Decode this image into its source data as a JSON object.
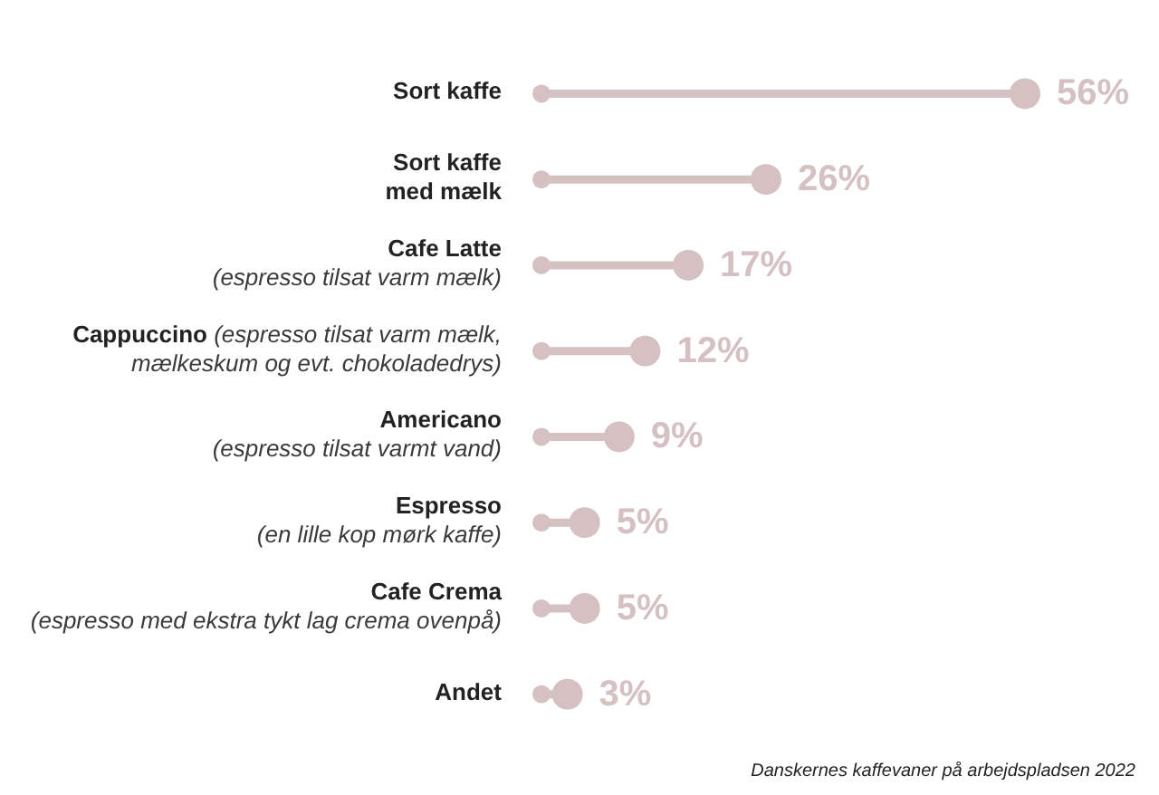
{
  "chart_data": {
    "type": "lollipop",
    "orientation": "horizontal",
    "categories": [
      "Sort kaffe",
      "Sort kaffe\nmed mælk",
      "Cafe Latte\n(espresso tilsat varm mælk)",
      "Cappuccino (espresso tilsat varm mælk,\nmælkeskum og evt. chokoladedrys)",
      "Americano\n(espresso tilsat varmt vand)",
      "Espresso\n(en lille kop mørk kaffe)",
      "Cafe Crema\n(espresso med ekstra tykt lag crema ovenpå)",
      "Andet"
    ],
    "values": [
      56,
      26,
      17,
      12,
      9,
      5,
      5,
      3
    ],
    "value_labels": [
      "56%",
      "26%",
      "17%",
      "12%",
      "9%",
      "5%",
      "5%",
      "3%"
    ],
    "color": "#d5c1c1",
    "marker": "circle",
    "annotations": [
      "Danskernes kaffevaner på arbejdspladsen 2022"
    ]
  }
}
